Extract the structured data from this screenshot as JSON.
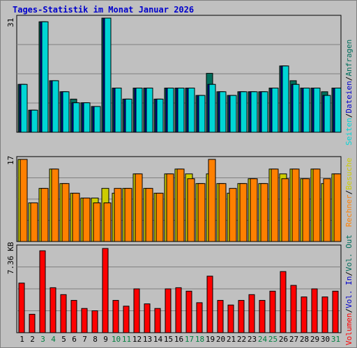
{
  "title": "Tages-Statistik im Monat Januar 2026",
  "colors": {
    "background": "#c0c0c0",
    "title": "#0000cc",
    "hits": "#006e5c",
    "files": "#0000cc",
    "pages": "#00d5d5",
    "visits": "#cccc00",
    "sites": "#ff8000",
    "kbytes": "#ff0000",
    "weekend": "#008040"
  },
  "panels": {
    "top_max_label": "31",
    "mid_max_label": "17",
    "bottom_max_label": "7.36 KB"
  },
  "legend_right": {
    "sep": "/",
    "hits": "Anfragen",
    "files": "Dateien",
    "pages": "Seiten",
    "visits": "Besuche",
    "sites": "Rechner",
    "kb_out": "Vol. Out",
    "kb_in": "Vol. In",
    "kbytes": "Volumen"
  },
  "days": [
    {
      "label": "1",
      "weekend": false
    },
    {
      "label": "2",
      "weekend": false
    },
    {
      "label": "3",
      "weekend": true
    },
    {
      "label": "4",
      "weekend": true
    },
    {
      "label": "5",
      "weekend": false
    },
    {
      "label": "6",
      "weekend": false
    },
    {
      "label": "7",
      "weekend": false
    },
    {
      "label": "8",
      "weekend": false
    },
    {
      "label": "9",
      "weekend": false
    },
    {
      "label": "10",
      "weekend": true
    },
    {
      "label": "11",
      "weekend": true
    },
    {
      "label": "12",
      "weekend": false
    },
    {
      "label": "13",
      "weekend": false
    },
    {
      "label": "14",
      "weekend": false
    },
    {
      "label": "15",
      "weekend": false
    },
    {
      "label": "16",
      "weekend": false
    },
    {
      "label": "17",
      "weekend": true
    },
    {
      "label": "18",
      "weekend": true
    },
    {
      "label": "19",
      "weekend": false
    },
    {
      "label": "20",
      "weekend": false
    },
    {
      "label": "21",
      "weekend": false
    },
    {
      "label": "22",
      "weekend": false
    },
    {
      "label": "23",
      "weekend": false
    },
    {
      "label": "24",
      "weekend": true
    },
    {
      "label": "25",
      "weekend": true
    },
    {
      "label": "26",
      "weekend": false
    },
    {
      "label": "27",
      "weekend": false
    },
    {
      "label": "28",
      "weekend": false
    },
    {
      "label": "29",
      "weekend": false
    },
    {
      "label": "30",
      "weekend": false
    },
    {
      "label": "31",
      "weekend": true
    }
  ],
  "chart_data": [
    {
      "type": "bar",
      "panel": "requests",
      "ylim": [
        0,
        31
      ],
      "ymax_label": "31",
      "categories": [
        "1",
        "2",
        "3",
        "4",
        "5",
        "6",
        "7",
        "8",
        "9",
        "10",
        "11",
        "12",
        "13",
        "14",
        "15",
        "16",
        "17",
        "18",
        "19",
        "20",
        "21",
        "22",
        "23",
        "24",
        "25",
        "26",
        "27",
        "28",
        "29",
        "30",
        "31"
      ],
      "series": [
        {
          "name": "Anfragen",
          "values": [
            13,
            6,
            30,
            14,
            11,
            9,
            8,
            7,
            31,
            12,
            9,
            12,
            12,
            9,
            12,
            12,
            12,
            10,
            16,
            11,
            10,
            11,
            11,
            11,
            12,
            18,
            14,
            12,
            12,
            11,
            12
          ]
        },
        {
          "name": "Dateien",
          "values": [
            13,
            6,
            30,
            14,
            11,
            8,
            8,
            7,
            31,
            12,
            9,
            12,
            12,
            9,
            12,
            12,
            12,
            10,
            13,
            11,
            10,
            11,
            11,
            11,
            12,
            18,
            13,
            12,
            12,
            10,
            12
          ]
        },
        {
          "name": "Seiten",
          "values": [
            13,
            6,
            30,
            14,
            11,
            8,
            8,
            7,
            31,
            12,
            9,
            12,
            12,
            9,
            12,
            12,
            12,
            10,
            13,
            11,
            10,
            11,
            11,
            11,
            12,
            18,
            13,
            12,
            12,
            10,
            12
          ]
        }
      ]
    },
    {
      "type": "bar",
      "panel": "visits",
      "ylim": [
        0,
        17
      ],
      "ymax_label": "17",
      "categories": [
        "1",
        "2",
        "3",
        "4",
        "5",
        "6",
        "7",
        "8",
        "9",
        "10",
        "11",
        "12",
        "13",
        "14",
        "15",
        "16",
        "17",
        "18",
        "19",
        "20",
        "21",
        "22",
        "23",
        "24",
        "25",
        "26",
        "27",
        "28",
        "29",
        "30",
        "31"
      ],
      "series": [
        {
          "name": "Besuche",
          "values": [
            17,
            8,
            11,
            15,
            12,
            10,
            9,
            9,
            11,
            10,
            11,
            14,
            11,
            10,
            14,
            15,
            14,
            12,
            14,
            12,
            10,
            12,
            13,
            12,
            15,
            14,
            15,
            13,
            15,
            12,
            14
          ]
        },
        {
          "name": "Rechner",
          "values": [
            17,
            8,
            11,
            15,
            12,
            10,
            9,
            8,
            8,
            11,
            11,
            14,
            11,
            10,
            14,
            15,
            13,
            12,
            17,
            12,
            11,
            12,
            13,
            12,
            15,
            13,
            15,
            13,
            15,
            13,
            14
          ]
        }
      ]
    },
    {
      "type": "bar",
      "panel": "volume",
      "ylim": [
        0,
        7.36
      ],
      "ymax_label": "7.36 KB",
      "categories": [
        "1",
        "2",
        "3",
        "4",
        "5",
        "6",
        "7",
        "8",
        "9",
        "10",
        "11",
        "12",
        "13",
        "14",
        "15",
        "16",
        "17",
        "18",
        "19",
        "20",
        "21",
        "22",
        "23",
        "24",
        "25",
        "26",
        "27",
        "28",
        "29",
        "30",
        "31"
      ],
      "series": [
        {
          "name": "Volumen",
          "values": [
            4.3,
            1.6,
            7.1,
            3.9,
            3.3,
            2.8,
            2.1,
            1.9,
            7.3,
            2.8,
            2.3,
            3.8,
            2.5,
            2.1,
            3.8,
            3.9,
            3.6,
            2.6,
            4.9,
            2.8,
            2.4,
            2.8,
            3.3,
            2.8,
            3.6,
            5.3,
            4.1,
            3.1,
            3.8,
            3.1,
            3.6
          ]
        }
      ]
    }
  ]
}
